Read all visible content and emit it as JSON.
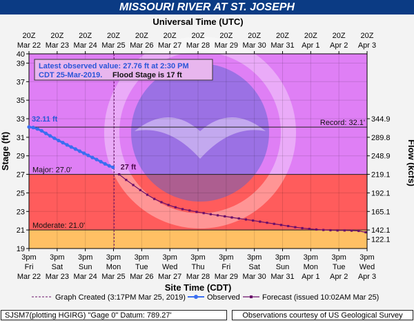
{
  "title": "MISSOURI RIVER AT ST. JOSEPH",
  "chart_data": {
    "type": "line",
    "top_axis_label": "Universal Time (UTC)",
    "bottom_axis_label": "Site Time (CDT)",
    "ylabel": "Stage (ft)",
    "y2label": "Flow (kcfs)",
    "ylim": [
      19,
      40
    ],
    "yticks": [
      "19",
      "21",
      "23",
      "25",
      "27",
      "29",
      "31",
      "33",
      "35",
      "37",
      "39",
      "40"
    ],
    "y2ticks": [
      {
        "stage": 20.0,
        "label": "122.1"
      },
      {
        "stage": 21.0,
        "label": "142.1"
      },
      {
        "stage": 23.0,
        "label": "165.1"
      },
      {
        "stage": 25.0,
        "label": "192.1"
      },
      {
        "stage": 27.0,
        "label": "219.1"
      },
      {
        "stage": 29.0,
        "label": "248.9"
      },
      {
        "stage": 31.0,
        "label": "289.8"
      },
      {
        "stage": 33.0,
        "label": "344.9"
      }
    ],
    "x_day_range": [
      0,
      12
    ],
    "top_ticks": [
      {
        "l1": "20Z",
        "l2": "Mar 22"
      },
      {
        "l1": "20Z",
        "l2": "Mar 23"
      },
      {
        "l1": "20Z",
        "l2": "Mar 24"
      },
      {
        "l1": "20Z",
        "l2": "Mar 25"
      },
      {
        "l1": "20Z",
        "l2": "Mar 26"
      },
      {
        "l1": "20Z",
        "l2": "Mar 27"
      },
      {
        "l1": "20Z",
        "l2": "Mar 28"
      },
      {
        "l1": "20Z",
        "l2": "Mar 29"
      },
      {
        "l1": "20Z",
        "l2": "Mar 30"
      },
      {
        "l1": "20Z",
        "l2": "Mar 31"
      },
      {
        "l1": "20Z",
        "l2": "Apr 1"
      },
      {
        "l1": "20Z",
        "l2": "Apr 2"
      },
      {
        "l1": "20Z",
        "l2": "Apr 3"
      }
    ],
    "bottom_ticks": [
      {
        "l1": "3pm",
        "l2": "Fri",
        "l3": "Mar 22"
      },
      {
        "l1": "3pm",
        "l2": "Sat",
        "l3": "Mar 23"
      },
      {
        "l1": "3pm",
        "l2": "Sun",
        "l3": "Mar 24"
      },
      {
        "l1": "3pm",
        "l2": "Mon",
        "l3": "Mar 25"
      },
      {
        "l1": "3pm",
        "l2": "Tue",
        "l3": "Mar 26"
      },
      {
        "l1": "3pm",
        "l2": "Wed",
        "l3": "Mar 27"
      },
      {
        "l1": "3pm",
        "l2": "Thu",
        "l3": "Mar 28"
      },
      {
        "l1": "3pm",
        "l2": "Fri",
        "l3": "Mar 29"
      },
      {
        "l1": "3pm",
        "l2": "Sat",
        "l3": "Mar 30"
      },
      {
        "l1": "3pm",
        "l2": "Sun",
        "l3": "Mar 31"
      },
      {
        "l1": "3pm",
        "l2": "Mon",
        "l3": "Apr 1"
      },
      {
        "l1": "3pm",
        "l2": "Tue",
        "l3": "Apr 2"
      },
      {
        "l1": "3pm",
        "l2": "Wed",
        "l3": "Apr 3"
      }
    ],
    "zones": [
      {
        "from": 19,
        "to": 21,
        "color": "#ffc064"
      },
      {
        "from": 21,
        "to": 27,
        "color": "#ff5c5c"
      },
      {
        "from": 27,
        "to": 40,
        "color": "#df7ff5"
      }
    ],
    "thresholds": [
      {
        "label": "Record: 32.1'",
        "value": 32.1,
        "pos": "right"
      },
      {
        "label": "Major: 27.0'",
        "value": 27.0,
        "pos": "left"
      },
      {
        "label": "Moderate: 21.0'",
        "value": 21.0,
        "pos": "left"
      }
    ],
    "info_box": {
      "line1": "Latest observed value: 27.76 ft at 2:30 PM",
      "line2": "CDT 25-Mar-2019.",
      "line2b": "Flood Stage is 17 ft"
    },
    "graph_created_day": 3.02,
    "observed": {
      "name": "Observed",
      "color": "#3a6ef0",
      "peak_label": "32.11 ft",
      "x": [
        0,
        0.15,
        0.3,
        0.45,
        0.6,
        0.75,
        0.9,
        1.05,
        1.2,
        1.35,
        1.5,
        1.65,
        1.8,
        1.95,
        2.1,
        2.25,
        2.4,
        2.55,
        2.7,
        2.85,
        2.98
      ],
      "y": [
        32.11,
        32.05,
        31.9,
        31.7,
        31.42,
        31.15,
        30.9,
        30.65,
        30.42,
        30.18,
        29.95,
        29.73,
        29.5,
        29.28,
        29.05,
        28.82,
        28.6,
        28.37,
        28.13,
        27.92,
        27.76
      ]
    },
    "forecast": {
      "name": "Forecast (issued 10:02AM Mar 25)",
      "color": "#6a0f6a",
      "start_label": "27 ft",
      "x": [
        3.2,
        3.45,
        3.7,
        3.95,
        4.2,
        4.45,
        4.7,
        4.95,
        5.2,
        5.45,
        5.7,
        5.95,
        6.2,
        6.45,
        6.7,
        6.95,
        7.2,
        7.45,
        7.7,
        7.95,
        8.2,
        8.45,
        8.7,
        8.95,
        9.2,
        9.45,
        9.7,
        9.95,
        10.2,
        10.45,
        10.7,
        10.95,
        11.2,
        11.45,
        11.7,
        11.95
      ],
      "y": [
        27.0,
        26.4,
        25.85,
        25.3,
        24.8,
        24.35,
        24.0,
        23.7,
        23.45,
        23.25,
        23.1,
        22.95,
        22.82,
        22.7,
        22.58,
        22.47,
        22.35,
        22.24,
        22.13,
        22.02,
        21.9,
        21.78,
        21.66,
        21.54,
        21.42,
        21.3,
        21.2,
        21.12,
        21.05,
        21.0,
        20.97,
        20.95,
        20.95,
        20.93,
        20.9,
        20.75
      ]
    },
    "legend": {
      "created": "Graph Created (3:17PM Mar 25, 2019)",
      "observed": "Observed",
      "forecast": "Forecast (issued 10:02AM Mar 25)"
    }
  },
  "footer": {
    "left": "SJSM7(plotting HGIRG) \"Gage 0\" Datum: 789.27'",
    "right": "Observations courtesy of US Geological Survey"
  }
}
